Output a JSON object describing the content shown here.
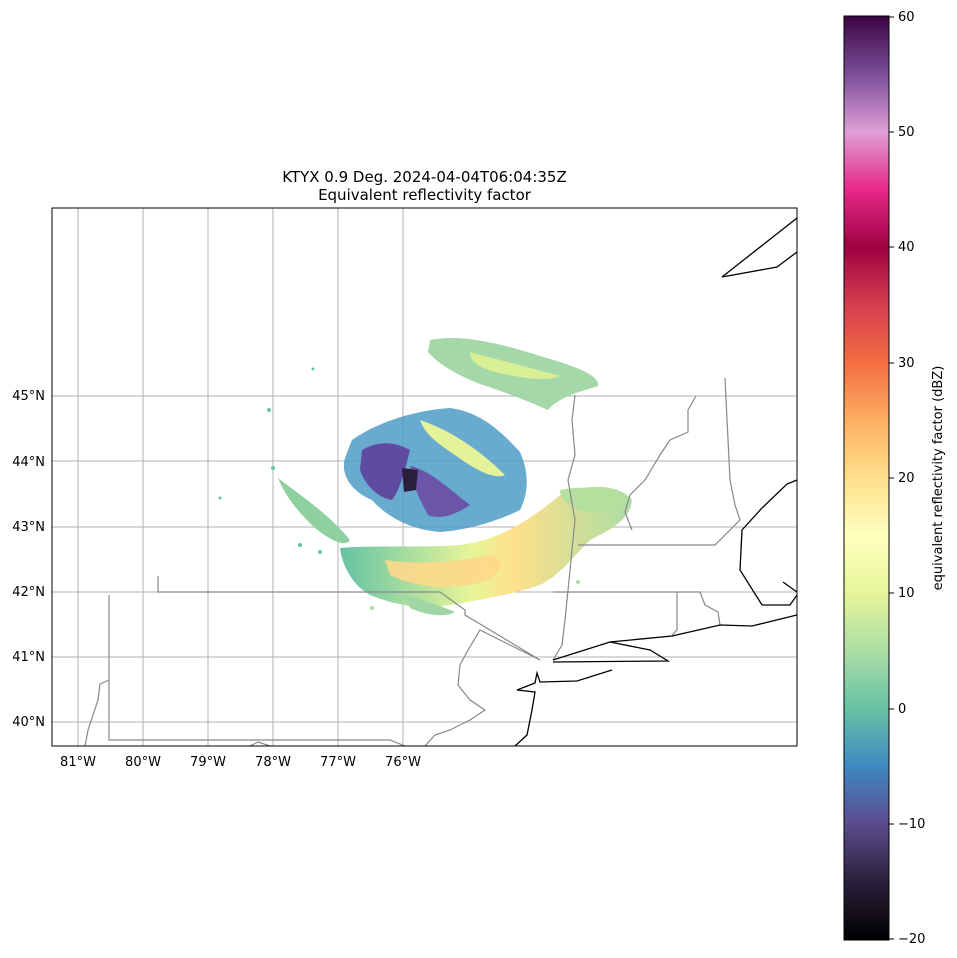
{
  "map": {
    "title": "KTYX 0.9 Deg. 2024-04-04T06:04:35Z",
    "subtitle": "Equivalent reflectivity factor",
    "lon_labels": [
      "81°W",
      "80°W",
      "79°W",
      "78°W",
      "77°W",
      "76°W"
    ],
    "lat_labels": [
      "45°N",
      "44°N",
      "43°N",
      "42°N",
      "41°N",
      "40°N"
    ]
  },
  "colorbar": {
    "label": "equivalent reflectivity factor (dBZ)",
    "ticks": [
      "60",
      "50",
      "40",
      "30",
      "20",
      "10",
      "0",
      "−10",
      "−20"
    ],
    "min": -20,
    "max": 60,
    "stops": [
      "#000000",
      "#2a1f3b",
      "#5b4a8e",
      "#3f87c2",
      "#66c2a5",
      "#abdda4",
      "#e6f598",
      "#ffffbf",
      "#fee08b",
      "#fdae61",
      "#f46d43",
      "#d53e4f",
      "#9e0142",
      "#e7298a",
      "#df9ed6",
      "#7b4d9a",
      "#3d0541"
    ]
  },
  "colors": {
    "state_border": "#888888",
    "coast": "#000000",
    "grid": "#b0b0b0"
  }
}
